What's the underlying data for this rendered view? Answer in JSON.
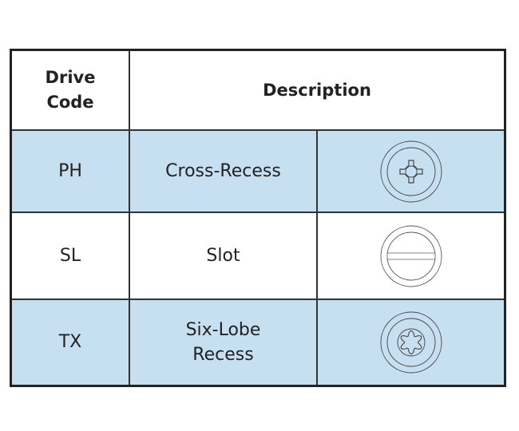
{
  "headers": {
    "code_line1": "Drive",
    "code_line2": "Code",
    "description": "Description"
  },
  "rows": [
    {
      "code": "PH",
      "desc_line1": "Cross-Recess",
      "desc_line2": "",
      "icon": "phillips-drive-icon"
    },
    {
      "code": "SL",
      "desc_line1": "Slot",
      "desc_line2": "",
      "icon": "slotted-drive-icon"
    },
    {
      "code": "TX",
      "desc_line1": "Six-Lobe",
      "desc_line2": "Recess",
      "icon": "torx-drive-icon"
    }
  ],
  "colors": {
    "row_highlight": "#c6dff1",
    "border": "#333333"
  }
}
